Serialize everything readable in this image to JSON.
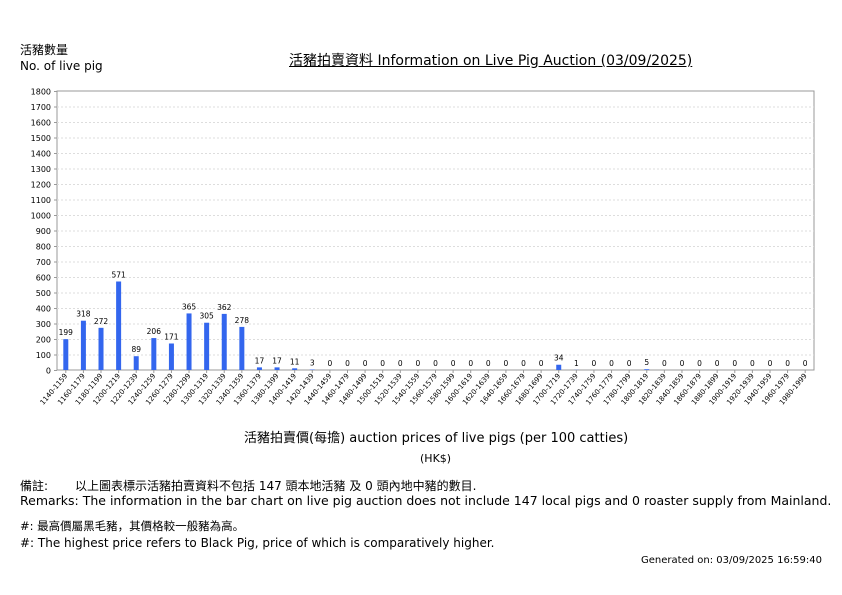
{
  "header": {
    "y_label_zh": "活豬數量",
    "y_label_en": "No. of live pig",
    "title": "活豬拍賣資料 Information on Live Pig Auction (03/09/2025)"
  },
  "axis": {
    "x_title": "活豬拍賣價(每擔) auction prices of live pigs (per 100 catties)",
    "unit": "(HK$)"
  },
  "remarks": {
    "label": "備註:",
    "zh": "以上圖表標示活豬拍賣資料不包括 147 頭本地活豬 及 0 頭內地中豬的數目.",
    "en": "Remarks: The information in the bar chart on live pig auction does not include 147 local pigs and 0 roaster supply from Mainland.",
    "hash_zh": "#: 最高價屬黑毛豬，其價格較一般豬為高。",
    "hash_en": "#: The highest price refers to Black Pig, price of which is comparatively higher."
  },
  "footer": {
    "generated": "Generated on: 03/09/2025 16:59:40"
  },
  "colors": {
    "bar": "#3366ee",
    "grid": "#dddddd",
    "axis": "#999999"
  },
  "chart_data": {
    "type": "bar",
    "title": "活豬拍賣資料 Information on Live Pig Auction (03/09/2025)",
    "xlabel": "活豬拍賣價(每擔) auction prices of live pigs (per 100 catties)",
    "ylabel": "活豬數量 No. of live pig",
    "ylim": [
      0,
      1800
    ],
    "yticks": [
      0,
      100,
      200,
      300,
      400,
      500,
      600,
      700,
      800,
      900,
      1000,
      1100,
      1200,
      1300,
      1400,
      1500,
      1600,
      1700,
      1800
    ],
    "grid": true,
    "categories": [
      "1140-1159",
      "1160-1179",
      "1180-1199",
      "1200-1219",
      "1220-1239",
      "1240-1259",
      "1260-1279",
      "1280-1299",
      "1300-1319",
      "1320-1339",
      "1340-1359",
      "1360-1379",
      "1380-1399",
      "1400-1419",
      "1420-1439",
      "1440-1459",
      "1460-1479",
      "1480-1499",
      "1500-1519",
      "1520-1539",
      "1540-1559",
      "1560-1579",
      "1580-1599",
      "1600-1619",
      "1620-1639",
      "1640-1659",
      "1660-1679",
      "1680-1699",
      "1700-1719",
      "1720-1739",
      "1740-1759",
      "1760-1779",
      "1780-1799",
      "1800-1819",
      "1820-1839",
      "1840-1859",
      "1860-1879",
      "1880-1899",
      "1900-1919",
      "1920-1939",
      "1940-1959",
      "1960-1979",
      "1980-1999"
    ],
    "values": [
      199,
      318,
      272,
      571,
      89,
      206,
      171,
      365,
      305,
      362,
      278,
      17,
      17,
      11,
      3,
      0,
      0,
      0,
      0,
      0,
      0,
      0,
      0,
      0,
      0,
      0,
      0,
      0,
      34,
      1,
      0,
      0,
      0,
      5,
      0,
      0,
      0,
      0,
      0,
      0,
      0,
      0,
      0
    ]
  }
}
